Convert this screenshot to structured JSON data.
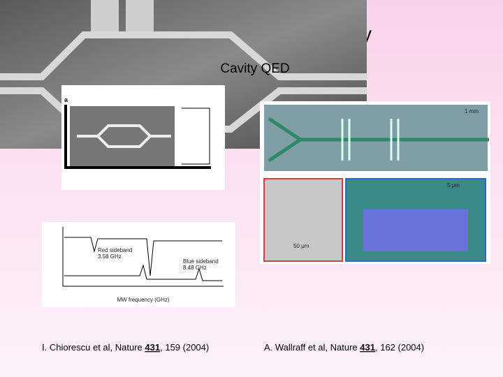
{
  "slide": {
    "title_fragment": "y",
    "subtitle": "Cavity QED",
    "left_figure": {
      "panel_a": "a",
      "axis_label": "MW frequency (GHz)",
      "red_sideband": "Red sideband",
      "red_freq": "3.58 GHz",
      "blue_sideband": "Blue sideband",
      "blue_freq": "8.48 GHz"
    },
    "right_figure": {
      "scale_1": "1 mm",
      "scale_2": "5 μm",
      "scale_3": "50 μm"
    },
    "citations": [
      {
        "prefix": "I. Chiorescu et al, Nature ",
        "volume": "431",
        "suffix": ", 159 (2004)"
      },
      {
        "prefix": "A. Wallraff et al, Nature ",
        "volume": "431",
        "suffix": ", 162 (2004)"
      }
    ]
  }
}
